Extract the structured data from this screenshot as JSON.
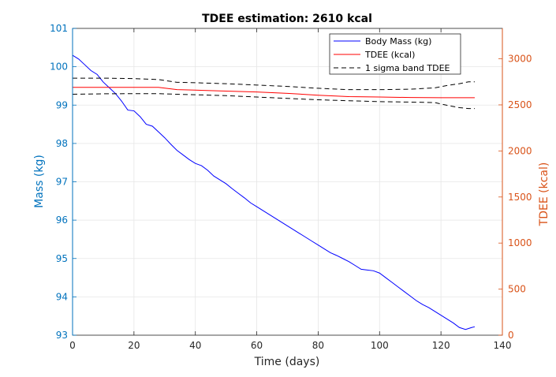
{
  "chart_data": {
    "type": "line",
    "title": "TDEE estimation: 2610 kcal",
    "xlabel": "Time (days)",
    "ylabel_left": "Mass (kg)",
    "ylabel_right": "TDEE (kcal)",
    "xlim": [
      0,
      140
    ],
    "ylim_left": [
      93,
      101
    ],
    "ylim_right": [
      0,
      3330
    ],
    "xticks": [
      "0",
      "20",
      "40",
      "60",
      "80",
      "100",
      "120",
      "140"
    ],
    "yticks_left": [
      "93",
      "94",
      "95",
      "96",
      "97",
      "98",
      "99",
      "100",
      "101"
    ],
    "yticks_right": [
      "0",
      "500",
      "1000",
      "1500",
      "2000",
      "2500",
      "3000"
    ],
    "grid": true,
    "legend_position": "top-right",
    "colors": {
      "left_axis": "#0072BD",
      "right_axis": "#D95319",
      "mass": "#0000FF",
      "tdee": "#FF0000",
      "band": "#000000"
    },
    "series": [
      {
        "name": "Body Mass (kg)",
        "axis": "left",
        "style": "solid",
        "x": [
          0,
          2,
          4,
          6,
          8,
          10,
          12,
          14,
          16,
          18,
          20,
          22,
          24,
          26,
          28,
          30,
          32,
          34,
          36,
          38,
          40,
          42,
          44,
          46,
          48,
          50,
          52,
          54,
          56,
          58,
          60,
          62,
          64,
          66,
          68,
          70,
          72,
          74,
          76,
          78,
          80,
          82,
          84,
          86,
          88,
          90,
          92,
          94,
          96,
          98,
          100,
          102,
          104,
          106,
          108,
          110,
          112,
          114,
          116,
          118,
          120,
          122,
          124,
          126,
          128,
          130,
          131
        ],
        "values": [
          100.3,
          100.2,
          100.05,
          99.9,
          99.8,
          99.6,
          99.45,
          99.3,
          99.1,
          98.87,
          98.85,
          98.7,
          98.5,
          98.45,
          98.3,
          98.15,
          97.98,
          97.82,
          97.7,
          97.58,
          97.48,
          97.42,
          97.3,
          97.15,
          97.05,
          96.95,
          96.82,
          96.7,
          96.58,
          96.45,
          96.35,
          96.25,
          96.15,
          96.05,
          95.95,
          95.85,
          95.75,
          95.65,
          95.55,
          95.45,
          95.35,
          95.25,
          95.15,
          95.08,
          95.0,
          94.92,
          94.82,
          94.72,
          94.7,
          94.68,
          94.62,
          94.5,
          94.38,
          94.26,
          94.14,
          94.02,
          93.9,
          93.8,
          93.72,
          93.62,
          93.52,
          93.42,
          93.32,
          93.2,
          93.15,
          93.2,
          93.22
        ]
      },
      {
        "name": "TDEE (kcal)",
        "axis": "right",
        "style": "solid",
        "x": [
          0,
          10,
          20,
          28,
          34,
          40,
          50,
          60,
          70,
          80,
          90,
          100,
          110,
          120,
          131
        ],
        "values": [
          2690,
          2690,
          2690,
          2690,
          2665,
          2660,
          2650,
          2640,
          2625,
          2605,
          2590,
          2585,
          2580,
          2578,
          2578
        ]
      },
      {
        "name": "1 sigma band TDEE",
        "axis": "right",
        "style": "dashed",
        "x": [
          0,
          10,
          20,
          28,
          34,
          40,
          50,
          60,
          70,
          80,
          90,
          100,
          110,
          118,
          122,
          126,
          129,
          131
        ],
        "values": [
          2790,
          2790,
          2785,
          2775,
          2745,
          2740,
          2730,
          2715,
          2700,
          2680,
          2665,
          2665,
          2670,
          2685,
          2710,
          2730,
          2750,
          2750
        ]
      },
      {
        "axis": "right",
        "style": "dashed",
        "x": [
          0,
          10,
          20,
          28,
          34,
          40,
          50,
          60,
          70,
          80,
          90,
          100,
          110,
          118,
          122,
          126,
          129,
          131
        ],
        "values": [
          2615,
          2620,
          2622,
          2622,
          2615,
          2610,
          2600,
          2585,
          2570,
          2555,
          2545,
          2535,
          2530,
          2525,
          2495,
          2470,
          2460,
          2460
        ]
      }
    ]
  }
}
